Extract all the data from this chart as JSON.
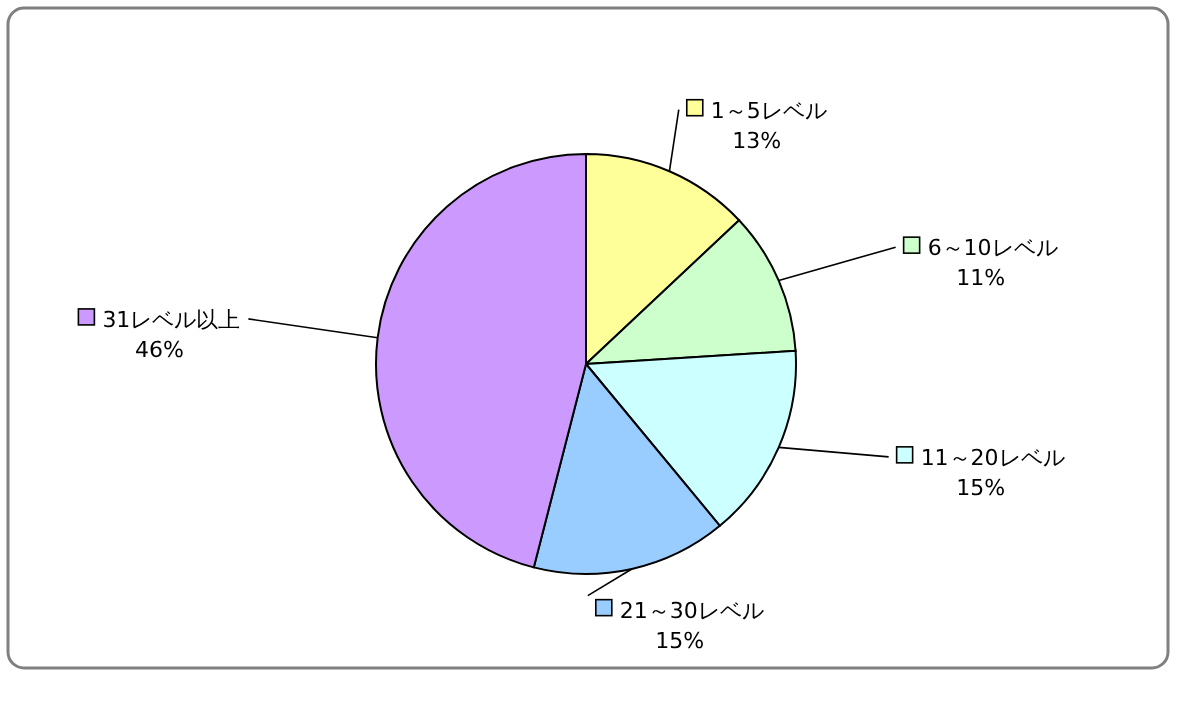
{
  "chart_data": {
    "type": "pie",
    "categories": [
      "1～5レベル",
      "6～10レベル",
      "11～20レベル",
      "21～30レベル",
      "31レベル以上"
    ],
    "values": [
      13,
      11,
      15,
      15,
      46
    ],
    "value_labels": [
      "13%",
      "11%",
      "15%",
      "15%",
      "46%"
    ],
    "colors": [
      "#ffff99",
      "#ccffcc",
      "#ccffff",
      "#99ccff",
      "#cc99ff"
    ],
    "legend": "right"
  }
}
